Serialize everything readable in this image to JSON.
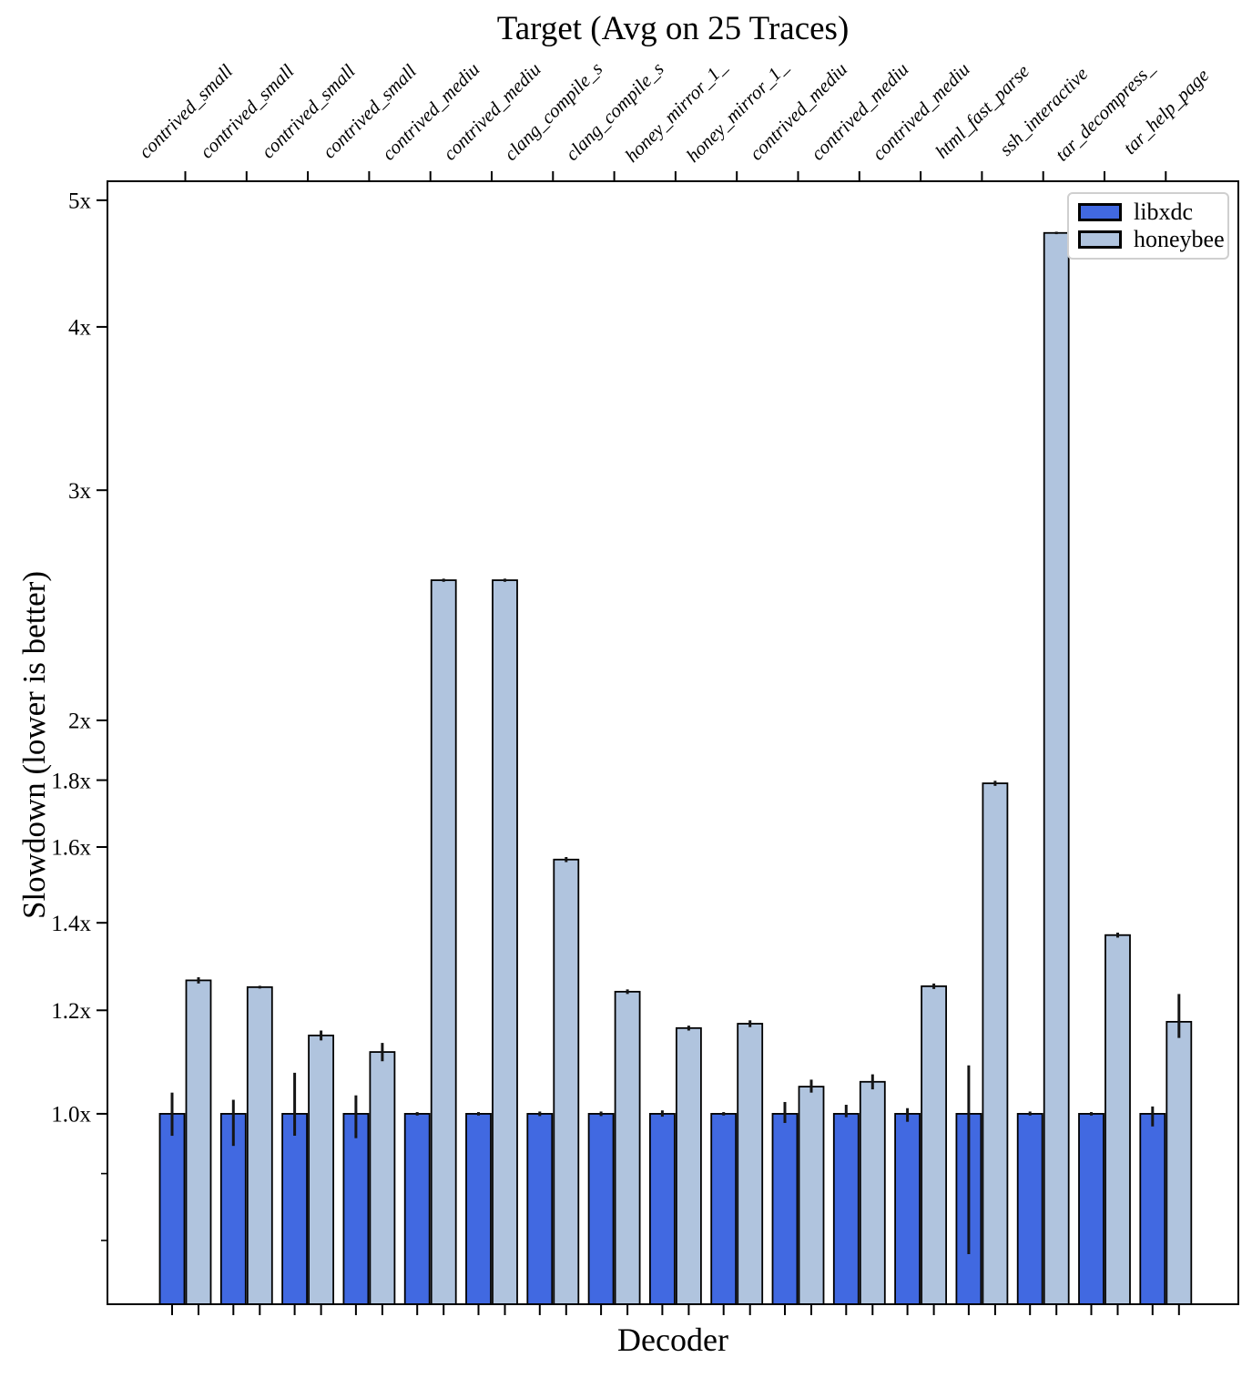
{
  "title": "Target (Avg on 25 Traces)",
  "x_axis_label": "Decoder",
  "y_axis_label": "Slowdown (lower is better)",
  "chart_data": {
    "type": "bar",
    "title": "Target (Avg on 25 Traces)",
    "xlabel": "Decoder",
    "ylabel": "Slowdown (lower is better)",
    "y_scale": "log",
    "ylim": [
      0.715,
      5.17
    ],
    "grid": false,
    "legend_position": "upper right",
    "y_major_ticks": [
      1.0,
      1.2,
      1.4,
      1.6,
      1.8,
      2,
      3,
      4,
      5
    ],
    "y_major_tick_labels": [
      "1.0x",
      "1.2x",
      "1.4x",
      "1.6x",
      "1.8x",
      "2x",
      "3x",
      "4x",
      "5x"
    ],
    "y_minor_ticks": [
      0.9,
      0.8
    ],
    "categories": [
      "contrived_small",
      "contrived_small",
      "contrived_small",
      "contrived_small",
      "contrived_mediu",
      "contrived_mediu",
      "clang_compile_s",
      "clang_compile_s",
      "honey_mirror_1_",
      "honey_mirror_1_",
      "contrived_mediu",
      "contrived_mediu",
      "contrived_mediu",
      "html_fast_parse",
      "ssh_interactive",
      "tar_decompress_",
      "tar_help_page"
    ],
    "series": [
      {
        "name": "libxdc",
        "color": "#4169e1",
        "values": [
          1.0,
          1.0,
          1.0,
          1.0,
          1.0,
          1.0,
          1.0,
          1.0,
          1.0,
          1.0,
          1.0,
          1.0,
          1.0,
          1.0,
          1.0,
          1.0,
          1.0
        ],
        "err_lo": [
          0.962,
          0.945,
          0.962,
          0.958,
          0.997,
          0.997,
          0.996,
          0.996,
          0.995,
          0.997,
          0.984,
          0.994,
          0.986,
          0.781,
          0.997,
          0.997,
          0.978
        ],
        "err_hi": [
          1.038,
          1.025,
          1.075,
          1.033,
          1.003,
          1.003,
          1.004,
          1.004,
          1.006,
          1.003,
          1.021,
          1.016,
          1.01,
          1.089,
          1.004,
          1.003,
          1.013
        ]
      },
      {
        "name": "honeybee",
        "color": "#b0c4de",
        "values": [
          1.265,
          1.25,
          1.148,
          1.115,
          2.56,
          2.56,
          1.565,
          1.24,
          1.163,
          1.172,
          1.049,
          1.058,
          1.252,
          1.79,
          4.72,
          1.37,
          1.176
        ],
        "err_lo": [
          1.258,
          1.247,
          1.138,
          1.097,
          2.553,
          2.553,
          1.558,
          1.235,
          1.158,
          1.165,
          1.038,
          1.044,
          1.246,
          1.782,
          4.71,
          1.364,
          1.143
        ],
        "err_hi": [
          1.272,
          1.253,
          1.158,
          1.133,
          2.567,
          2.567,
          1.572,
          1.245,
          1.168,
          1.179,
          1.062,
          1.072,
          1.258,
          1.798,
          4.73,
          1.376,
          1.235
        ]
      }
    ]
  }
}
